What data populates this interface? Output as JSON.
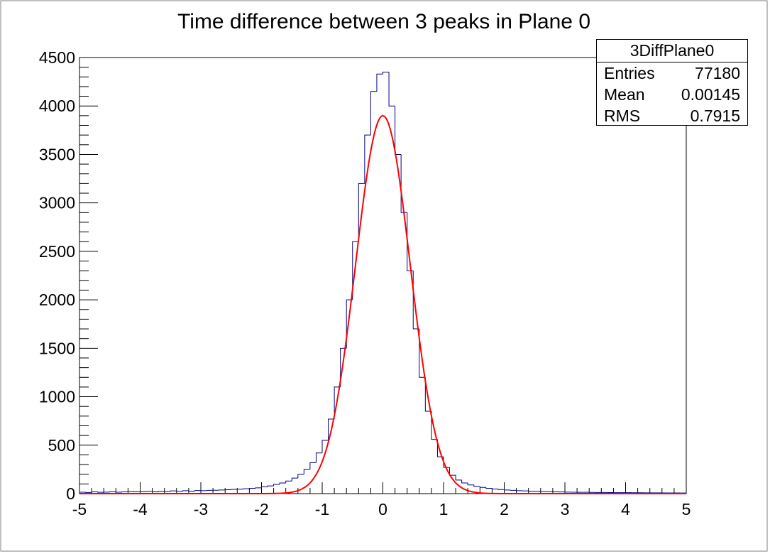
{
  "chart_data": {
    "type": "histogram",
    "title": "Time difference between 3 peaks in Plane 0",
    "xlim": [
      -5,
      5
    ],
    "ylim": [
      0,
      4500
    ],
    "xticks": [
      -5,
      -4,
      -3,
      -2,
      -1,
      0,
      1,
      2,
      3,
      4,
      5
    ],
    "yticks": [
      0,
      500,
      1000,
      1500,
      2000,
      2500,
      3000,
      3500,
      4000,
      4500
    ],
    "grid": false,
    "histogram": {
      "color": "#000080",
      "bin_width": 0.1,
      "bin_centers": [
        -4.95,
        -4.85,
        -4.75,
        -4.65,
        -4.55,
        -4.45,
        -4.35,
        -4.25,
        -4.15,
        -4.05,
        -3.95,
        -3.85,
        -3.75,
        -3.65,
        -3.55,
        -3.45,
        -3.35,
        -3.25,
        -3.15,
        -3.05,
        -2.95,
        -2.85,
        -2.75,
        -2.65,
        -2.55,
        -2.45,
        -2.35,
        -2.25,
        -2.15,
        -2.05,
        -1.95,
        -1.85,
        -1.75,
        -1.65,
        -1.55,
        -1.45,
        -1.35,
        -1.25,
        -1.15,
        -1.05,
        -0.95,
        -0.85,
        -0.75,
        -0.65,
        -0.55,
        -0.45,
        -0.35,
        -0.25,
        -0.15,
        -0.05,
        0.05,
        0.15,
        0.25,
        0.35,
        0.45,
        0.55,
        0.65,
        0.75,
        0.85,
        0.95,
        1.05,
        1.15,
        1.25,
        1.35,
        1.45,
        1.55,
        1.65,
        1.75,
        1.85,
        1.95,
        2.05,
        2.15,
        2.25,
        2.35,
        2.45,
        2.55,
        2.65,
        2.75,
        2.85,
        2.95,
        3.05,
        3.15,
        3.25,
        3.35,
        3.45,
        3.55,
        3.65,
        3.75,
        3.85,
        3.95,
        4.05,
        4.15,
        4.25,
        4.35,
        4.45,
        4.55,
        4.65,
        4.75,
        4.85,
        4.95
      ],
      "counts": [
        15,
        12,
        18,
        14,
        16,
        20,
        15,
        18,
        22,
        19,
        20,
        24,
        18,
        25,
        22,
        28,
        24,
        30,
        26,
        32,
        30,
        34,
        35,
        38,
        40,
        44,
        46,
        50,
        55,
        60,
        70,
        80,
        95,
        110,
        130,
        160,
        200,
        250,
        320,
        420,
        550,
        770,
        1100,
        1500,
        2000,
        2600,
        3200,
        3700,
        4150,
        4330,
        4350,
        4000,
        3500,
        2900,
        2300,
        1700,
        1200,
        850,
        560,
        380,
        270,
        190,
        140,
        110,
        90,
        75,
        64,
        55,
        48,
        42,
        38,
        34,
        30,
        28,
        26,
        24,
        22,
        20,
        18,
        17,
        16,
        15,
        14,
        14,
        13,
        12,
        12,
        11,
        10,
        10,
        10,
        9,
        9,
        8,
        8,
        8,
        7,
        7,
        7,
        6
      ]
    },
    "fit": {
      "type": "gaussian",
      "color": "#ff0000",
      "amplitude": 3900,
      "mean": 0.0,
      "sigma": 0.45,
      "range": [
        -5,
        5
      ]
    },
    "stats_box": {
      "name": "3DiffPlane0",
      "rows": [
        {
          "label": "Entries",
          "value": "77180"
        },
        {
          "label": "Mean",
          "value": "0.00145"
        },
        {
          "label": "RMS",
          "value": "0.7915"
        }
      ]
    }
  }
}
